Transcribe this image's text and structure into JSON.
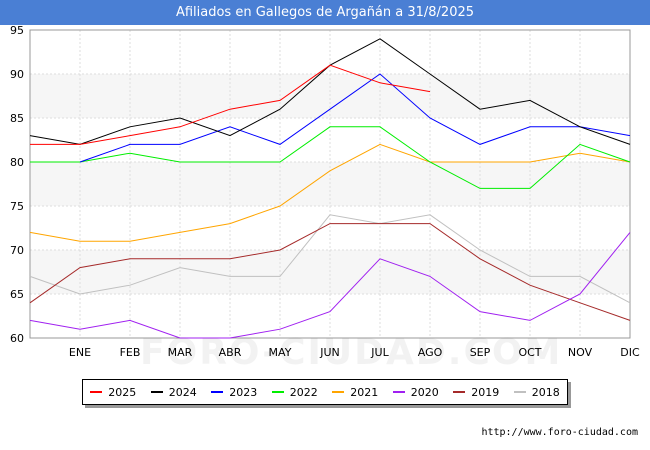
{
  "chart_data": {
    "type": "line",
    "title": "Afiliados en Gallegos de Argañán a 31/8/2025",
    "xlabel": "",
    "ylabel": "",
    "x": [
      "",
      "ENE",
      "FEB",
      "MAR",
      "ABR",
      "MAY",
      "JUN",
      "JUL",
      "AGO",
      "SEP",
      "OCT",
      "NOV",
      "DIC"
    ],
    "ylim": [
      60,
      95
    ],
    "yticks": [
      60,
      65,
      70,
      75,
      80,
      85,
      90,
      95
    ],
    "grid": true,
    "legend_position": "bottom",
    "series": [
      {
        "name": "2025",
        "color": "#ff0000",
        "values": [
          82,
          82,
          83,
          84,
          86,
          87,
          91,
          89,
          88,
          null,
          null,
          null,
          null
        ]
      },
      {
        "name": "2024",
        "color": "#000000",
        "values": [
          83,
          82,
          84,
          85,
          83,
          86,
          91,
          94,
          90,
          86,
          87,
          84,
          82
        ]
      },
      {
        "name": "2023",
        "color": "#0000ff",
        "values": [
          null,
          80,
          82,
          82,
          84,
          82,
          86,
          90,
          85,
          82,
          84,
          84,
          83
        ]
      },
      {
        "name": "2022",
        "color": "#00ee00",
        "values": [
          80,
          80,
          81,
          80,
          80,
          80,
          84,
          84,
          80,
          77,
          77,
          82,
          80
        ]
      },
      {
        "name": "2021",
        "color": "#ffa500",
        "values": [
          72,
          71,
          71,
          72,
          73,
          75,
          79,
          82,
          80,
          80,
          80,
          81,
          80
        ]
      },
      {
        "name": "2020",
        "color": "#a020f0",
        "values": [
          62,
          61,
          62,
          60,
          60,
          61,
          63,
          69,
          67,
          63,
          62,
          65,
          72
        ]
      },
      {
        "name": "2019",
        "color": "#a52a2a",
        "values": [
          64,
          68,
          69,
          69,
          69,
          70,
          73,
          73,
          73,
          69,
          66,
          64,
          62
        ]
      },
      {
        "name": "2018",
        "color": "#c0c0c0",
        "values": [
          67,
          65,
          66,
          68,
          67,
          67,
          74,
          73,
          74,
          70,
          67,
          67,
          64
        ]
      }
    ]
  },
  "watermark": "FORO-CIUDAD.COM",
  "source": "http://www.foro-ciudad.com"
}
